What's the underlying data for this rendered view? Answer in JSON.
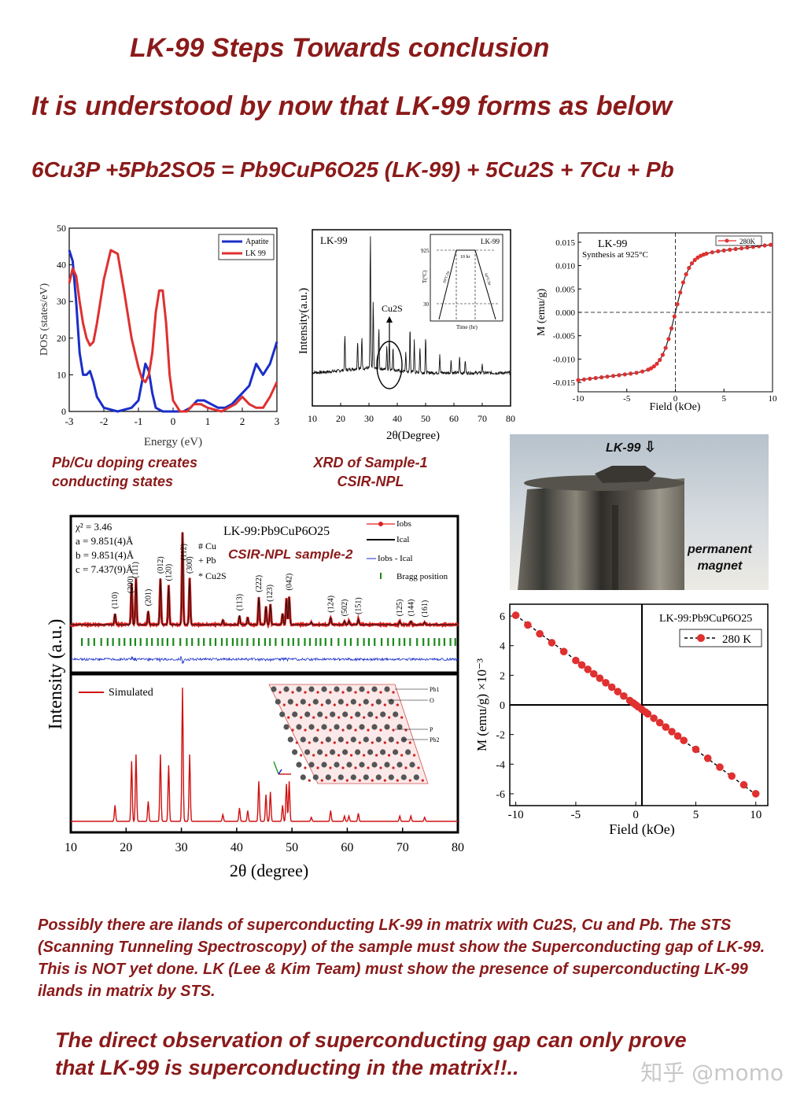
{
  "header": {
    "title": "LK-99 Steps Towards conclusion",
    "subtitle": "It is understood by now that LK-99 forms as below",
    "equation": "6Cu3P +5Pb2SO5 = Pb9CuP6O25 (LK-99) + 5Cu2S + 7Cu + Pb"
  },
  "captions": {
    "dos_line1": "Pb/Cu doping creates",
    "dos_line2": "conducting states",
    "xrd_line1": "XRD of Sample-1",
    "xrd_line2": "CSIR-NPL"
  },
  "photo": {
    "label": "LK-99",
    "arrow": "⇩",
    "magnet_line1": "permanent",
    "magnet_line2": "magnet"
  },
  "paragraph": "Possibly there are ilands of superconducting LK-99 in matrix with Cu2S, Cu and Pb. The STS (Scanning Tunneling Spectroscopy) of the sample must show the Superconducting gap of LK-99. This is NOT yet done. LK (Lee & Kim Team) must show the presence of superconducting LK-99 ilands in matrix by STS.",
  "conclusion_line1": "The direct observation of superconducting gap can only prove",
  "conclusion_line2": "that LK-99 is superconducting in the matrix!!..",
  "watermark": "知乎 @momo",
  "colors": {
    "maroon": "#8b1a1a",
    "red": "#e03030",
    "blue": "#1a2ec8",
    "green": "#1a8a1a"
  },
  "chart_data": [
    {
      "id": "dos",
      "type": "line",
      "xlabel": "Energy (eV)",
      "ylabel": "DOS (states/eV)",
      "xlim": [
        -3,
        3
      ],
      "ylim": [
        0,
        50
      ],
      "xticks": [
        "-3",
        "-2",
        "-1",
        "0",
        "1",
        "2",
        "3"
      ],
      "yticks": [
        "0",
        "10",
        "20",
        "30",
        "40",
        "50"
      ],
      "legend": "top-right",
      "series": [
        {
          "name": "Apatite",
          "color": "#1a2ec8",
          "x": [
            -3,
            -2.9,
            -2.8,
            -2.7,
            -2.6,
            -2.5,
            -2.4,
            -2.3,
            -2.2,
            -2.0,
            -1.6,
            -1.2,
            -1.0,
            -0.9,
            -0.8,
            -0.7,
            -0.6,
            -0.5,
            -0.3,
            -0.1,
            0.1,
            0.3,
            0.5,
            0.7,
            0.9,
            1.1,
            1.3,
            1.5,
            1.7,
            2.0,
            2.2,
            2.4,
            2.6,
            2.8,
            3.0
          ],
          "y": [
            44,
            41,
            30,
            16,
            10,
            10,
            11,
            8,
            4,
            1,
            0,
            1,
            3,
            8,
            13,
            11,
            5,
            1,
            0,
            0,
            0,
            0,
            1,
            3,
            3,
            2,
            1,
            1,
            2,
            5,
            7,
            13,
            10,
            13,
            19
          ]
        },
        {
          "name": "LK 99",
          "color": "#e03030",
          "x": [
            -3,
            -2.9,
            -2.8,
            -2.7,
            -2.6,
            -2.5,
            -2.4,
            -2.3,
            -2.2,
            -2.0,
            -1.8,
            -1.6,
            -1.4,
            -1.2,
            -1.0,
            -0.9,
            -0.8,
            -0.7,
            -0.6,
            -0.5,
            -0.4,
            -0.3,
            -0.2,
            -0.1,
            0.0,
            0.2,
            0.4,
            0.6,
            0.8,
            1.0,
            1.4,
            1.8,
            2.0,
            2.2,
            2.4,
            2.6,
            2.8,
            3.0
          ],
          "y": [
            35,
            39,
            37,
            30,
            24,
            20,
            18,
            19,
            24,
            36,
            44,
            43,
            32,
            20,
            12,
            9,
            8,
            10,
            16,
            27,
            33,
            33,
            24,
            10,
            3,
            0,
            0,
            2,
            2,
            1,
            0,
            2,
            4,
            2,
            1,
            1,
            4,
            8
          ]
        }
      ]
    },
    {
      "id": "xrd1",
      "type": "line",
      "title": "LK-99",
      "xlabel": "2θ(Degree)",
      "ylabel": "Intensity(a.u.)",
      "xlim": [
        10,
        80
      ],
      "xticks": [
        "10",
        "20",
        "30",
        "40",
        "50",
        "60",
        "70",
        "80"
      ],
      "annotation": "Cu2S",
      "peaks": [
        {
          "x": 21.5,
          "h": 0.22
        },
        {
          "x": 26,
          "h": 0.18
        },
        {
          "x": 27.5,
          "h": 0.2
        },
        {
          "x": 30.5,
          "h": 0.85
        },
        {
          "x": 31.5,
          "h": 0.42
        },
        {
          "x": 33.5,
          "h": 0.25
        },
        {
          "x": 36.3,
          "h": 0.15
        },
        {
          "x": 37.2,
          "h": 0.2
        },
        {
          "x": 38.5,
          "h": 0.15
        },
        {
          "x": 43,
          "h": 0.12
        },
        {
          "x": 44.5,
          "h": 0.28
        },
        {
          "x": 46,
          "h": 0.2
        },
        {
          "x": 48,
          "h": 0.16
        },
        {
          "x": 50,
          "h": 0.22
        },
        {
          "x": 55,
          "h": 0.12
        },
        {
          "x": 59,
          "h": 0.08
        },
        {
          "x": 62,
          "h": 0.1
        },
        {
          "x": 64,
          "h": 0.08
        },
        {
          "x": 70,
          "h": 0.06
        }
      ],
      "inset": {
        "title": "LK-99",
        "ylabel": "T(°C)",
        "xlabel": "Time (hr)",
        "yticks": [
          "925",
          "30"
        ],
        "hold_label": "10 hr",
        "ramp_label": "60°C/hr"
      }
    },
    {
      "id": "mh1",
      "type": "scatter",
      "title": "LK-99",
      "subtitle": "Synthesis at 925°C",
      "xlabel": "Field (kOe)",
      "ylabel": "M (emu/g)",
      "xlim": [
        -10,
        10
      ],
      "ylim": [
        -0.017,
        0.017
      ],
      "xticks": [
        "-10",
        "-5",
        "0",
        "5",
        "10"
      ],
      "yticks": [
        "-0.015",
        "-0.010",
        "-0.005",
        "0.000",
        "0.005",
        "0.010",
        "0.015"
      ],
      "series": [
        {
          "name": "280K",
          "color": "#e03030"
        }
      ]
    },
    {
      "id": "xrd2",
      "type": "line",
      "title": "LK-99:Pb9CuP6O25",
      "overlay": "CSIR-NPL sample-2",
      "fit_params": [
        "χ² = 3.46",
        "a = 9.851(4)Å",
        "b = 9.851(4)Å",
        "c = 7.437(9)Å"
      ],
      "phase_marks": [
        "# Cu",
        "+ Pb",
        "* Cu2S"
      ],
      "legend": [
        "Iobs",
        "Ical",
        "Iobs - Ical",
        "Bragg position"
      ],
      "legend2": "Simulated",
      "xlabel": "2θ (degree)",
      "ylabel": "Intensity (a.u.)",
      "xlim": [
        10,
        80
      ],
      "xticks": [
        "10",
        "20",
        "30",
        "40",
        "50",
        "60",
        "70",
        "80"
      ],
      "hkl": [
        {
          "x": 18,
          "label": "(110)"
        },
        {
          "x": 20.8,
          "label": "(200)"
        },
        {
          "x": 21.7,
          "label": "(111)"
        },
        {
          "x": 24,
          "label": "(201)"
        },
        {
          "x": 26.2,
          "label": "(012)"
        },
        {
          "x": 27.7,
          "label": "(120)"
        },
        {
          "x": 30.4,
          "label": "(112)"
        },
        {
          "x": 31.5,
          "label": "(300)"
        },
        {
          "x": 40.5,
          "label": "(113)"
        },
        {
          "x": 44,
          "label": "(222)"
        },
        {
          "x": 46,
          "label": "(123)"
        },
        {
          "x": 49.5,
          "label": "(042)"
        },
        {
          "x": 57,
          "label": "(124)"
        },
        {
          "x": 59.5,
          "label": "(502)"
        },
        {
          "x": 62,
          "label": "(151)"
        },
        {
          "x": 69.5,
          "label": "(125)"
        },
        {
          "x": 71.5,
          "label": "(144)"
        },
        {
          "x": 74,
          "label": "(161)"
        }
      ],
      "structure_labels": [
        "Pb1",
        "O",
        "P",
        "Pb2"
      ],
      "peaks": [
        {
          "x": 18,
          "h": 0.12
        },
        {
          "x": 21,
          "h": 0.45
        },
        {
          "x": 21.8,
          "h": 0.5
        },
        {
          "x": 24,
          "h": 0.15
        },
        {
          "x": 26.2,
          "h": 0.5
        },
        {
          "x": 27.7,
          "h": 0.42
        },
        {
          "x": 30.2,
          "h": 1.0
        },
        {
          "x": 31.5,
          "h": 0.5
        },
        {
          "x": 37.5,
          "h": 0.05
        },
        {
          "x": 40.5,
          "h": 0.1
        },
        {
          "x": 42,
          "h": 0.08
        },
        {
          "x": 44,
          "h": 0.3
        },
        {
          "x": 45.3,
          "h": 0.2
        },
        {
          "x": 46.1,
          "h": 0.22
        },
        {
          "x": 48.3,
          "h": 0.12
        },
        {
          "x": 49,
          "h": 0.28
        },
        {
          "x": 49.5,
          "h": 0.3
        },
        {
          "x": 53.5,
          "h": 0.03
        },
        {
          "x": 57,
          "h": 0.08
        },
        {
          "x": 59.5,
          "h": 0.04
        },
        {
          "x": 60.3,
          "h": 0.04
        },
        {
          "x": 62,
          "h": 0.06
        },
        {
          "x": 69.5,
          "h": 0.04
        },
        {
          "x": 71.5,
          "h": 0.04
        },
        {
          "x": 74,
          "h": 0.03
        }
      ]
    },
    {
      "id": "mh2",
      "type": "scatter",
      "title": "LK-99:Pb9CuP6O25",
      "xlabel": "Field (kOe)",
      "ylabel": "M (emu/g) ×10⁻³",
      "xlim": [
        -10.5,
        11
      ],
      "ylim": [
        -6.8,
        6.8
      ],
      "xticks": [
        "-10",
        "-5",
        "0",
        "5",
        "10"
      ],
      "yticks": [
        "-6",
        "-4",
        "-2",
        "0",
        "2",
        "4",
        "6"
      ],
      "series": [
        {
          "name": "280 K",
          "color": "#e03030",
          "slope": -0.6
        }
      ]
    }
  ]
}
